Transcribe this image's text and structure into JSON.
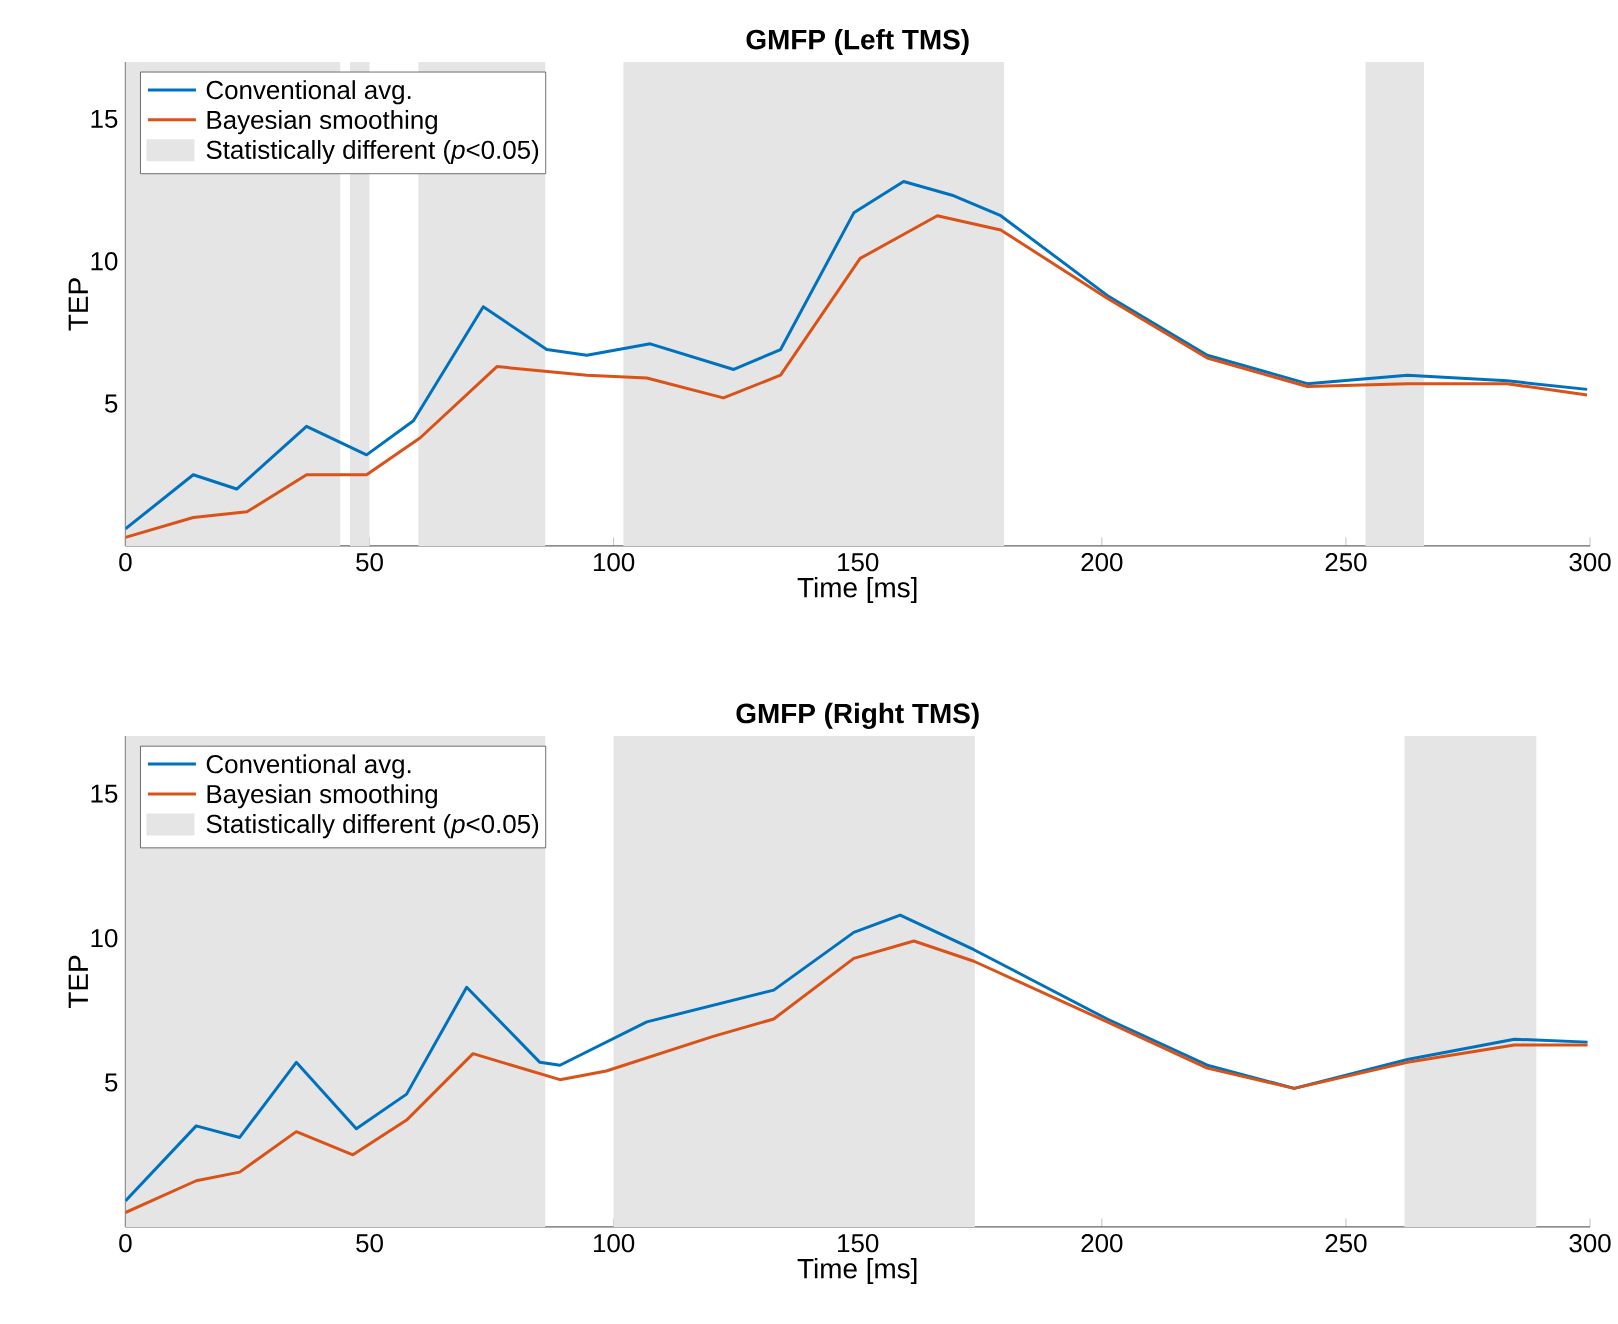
{
  "chart_data": [
    {
      "type": "line",
      "title": "GMFP (Left TMS)",
      "xlabel": "Time [ms]",
      "ylabel": "TEP",
      "xlim": [
        0,
        300
      ],
      "ylim": [
        0,
        17
      ],
      "xticks": [
        0,
        50,
        100,
        150,
        200,
        250,
        300
      ],
      "yticks": [
        5,
        10,
        15
      ],
      "legend": "top left",
      "series": [
        {
          "name": "Conventional avg.",
          "color": "#0072bd",
          "x": [
            0,
            13.9,
            22.8,
            37.1,
            49.4,
            59.0,
            73.3,
            86.3,
            94.5,
            107.5,
            124.6,
            134.2,
            149.2,
            159.4,
            169.7,
            179.3,
            201.1,
            221.6,
            242.1,
            262.6,
            283.0,
            299.4
          ],
          "values": [
            0.6,
            2.5,
            2.0,
            4.2,
            3.2,
            4.4,
            8.4,
            6.9,
            6.7,
            7.1,
            6.2,
            6.9,
            11.7,
            12.8,
            12.3,
            11.6,
            8.8,
            6.7,
            5.7,
            6.0,
            5.8,
            5.5
          ]
        },
        {
          "name": "Bayesian smoothing",
          "color": "#d95319",
          "x": [
            0,
            13.9,
            24.9,
            37.1,
            49.4,
            60.4,
            76.1,
            94.5,
            106.8,
            122.5,
            134.2,
            150.5,
            166.3,
            179.3,
            201.1,
            221.6,
            242.1,
            262.6,
            283.0,
            299.4
          ],
          "values": [
            0.3,
            1.0,
            1.2,
            2.5,
            2.5,
            3.8,
            6.3,
            6.0,
            5.9,
            5.2,
            6.0,
            10.1,
            11.6,
            11.1,
            8.7,
            6.6,
            5.6,
            5.7,
            5.7,
            5.3
          ]
        }
      ],
      "bands": [
        {
          "axis": "x",
          "from": 0,
          "to": 44,
          "label": "Statistically different (*p*<0.05)",
          "color": "#e5e5e5"
        },
        {
          "axis": "x",
          "from": 46,
          "to": 50,
          "color": "#e5e5e5"
        },
        {
          "axis": "x",
          "from": 60,
          "to": 86,
          "color": "#e5e5e5"
        },
        {
          "axis": "x",
          "from": 102,
          "to": 180,
          "color": "#e5e5e5"
        },
        {
          "axis": "x",
          "from": 254,
          "to": 266,
          "color": "#e5e5e5"
        }
      ]
    },
    {
      "type": "line",
      "title": "GMFP (Right TMS)",
      "xlabel": "Time [ms]",
      "ylabel": "TEP",
      "xlim": [
        0,
        300
      ],
      "ylim": [
        0,
        17
      ],
      "xticks": [
        0,
        50,
        100,
        150,
        200,
        250,
        300
      ],
      "yticks": [
        5,
        10,
        15
      ],
      "legend": "top left",
      "series": [
        {
          "name": "Conventional avg.",
          "color": "#0072bd",
          "x": [
            0,
            14.5,
            23.4,
            35.0,
            47.3,
            57.6,
            69.9,
            84.9,
            89.0,
            106.8,
            132.8,
            149.2,
            158.7,
            173.8,
            201.1,
            221.6,
            239.4,
            262.6,
            284.5,
            299.5
          ],
          "values": [
            0.9,
            3.5,
            3.1,
            5.7,
            3.4,
            4.6,
            8.3,
            5.7,
            5.6,
            7.1,
            8.2,
            10.2,
            10.8,
            9.6,
            7.2,
            5.6,
            4.8,
            5.8,
            6.5,
            6.4
          ]
        },
        {
          "name": "Bayesian smoothing",
          "color": "#d95319",
          "x": [
            0,
            14.5,
            23.4,
            35.0,
            46.6,
            57.6,
            71.2,
            89.0,
            98.5,
            120.4,
            132.8,
            149.2,
            161.5,
            173.8,
            201.1,
            221.6,
            239.4,
            262.6,
            284.5,
            299.5
          ],
          "values": [
            0.5,
            1.6,
            1.9,
            3.3,
            2.5,
            3.7,
            6.0,
            5.1,
            5.4,
            6.6,
            7.2,
            9.3,
            9.9,
            9.2,
            7.1,
            5.5,
            4.8,
            5.7,
            6.3,
            6.3
          ]
        }
      ],
      "bands": [
        {
          "axis": "x",
          "from": 0,
          "to": 86,
          "label": "Statistically different (*p*<0.05)",
          "color": "#e5e5e5"
        },
        {
          "axis": "x",
          "from": 100,
          "to": 174,
          "color": "#e5e5e5"
        },
        {
          "axis": "x",
          "from": 262,
          "to": 289,
          "color": "#e5e5e5"
        }
      ]
    }
  ]
}
